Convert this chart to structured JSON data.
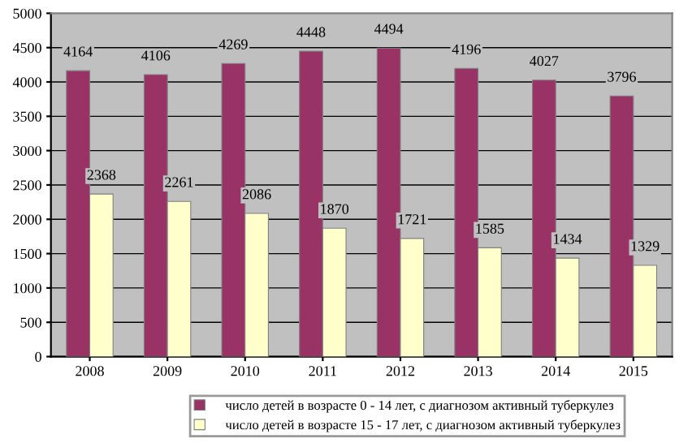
{
  "chart_data": {
    "type": "bar",
    "categories": [
      "2008",
      "2009",
      "2010",
      "2011",
      "2012",
      "2013",
      "2014",
      "2015"
    ],
    "series": [
      {
        "name": "число детей в возрасте 0 - 14 лет, с диагнозом активный туберкулез",
        "color": "#993366",
        "values": [
          4164,
          4106,
          4269,
          4448,
          4494,
          4196,
          4027,
          3796
        ]
      },
      {
        "name": "число детей в возрасте 15 - 17 лет, с диагнозом активный туберкулез",
        "color": "#ffffcc",
        "values": [
          2368,
          2261,
          2086,
          1870,
          1721,
          1585,
          1434,
          1329
        ]
      }
    ],
    "ylim": [
      0,
      5000
    ],
    "yticks": [
      0,
      500,
      1000,
      1500,
      2000,
      2500,
      3000,
      3500,
      4000,
      4500,
      5000
    ],
    "grid": "y",
    "legend": "bottom",
    "data_labels": true
  }
}
